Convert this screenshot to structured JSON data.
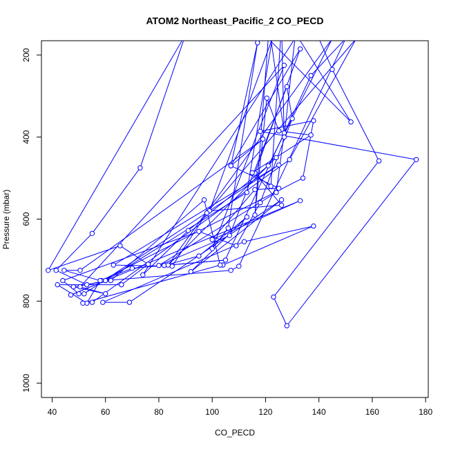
{
  "chart_data": {
    "type": "line",
    "title": "ATOM2 Northeast_Pacific_2 CO_PECD",
    "xlabel": "CO_PECD",
    "ylabel": "Pressure (mbar)",
    "xlim": [
      36,
      181
    ],
    "ylim": [
      1035,
      165
    ],
    "y_reversed": true,
    "xticks": [
      40,
      60,
      80,
      100,
      120,
      140,
      160,
      180
    ],
    "yticks": [
      200,
      400,
      600,
      800,
      1000
    ],
    "grid": false,
    "legend": "none",
    "colors": {
      "series": "#0000ff",
      "axis": "#000000"
    },
    "series": [
      {
        "points": [
          [
            140,
            160
          ],
          [
            145,
            235
          ],
          [
            162.5,
            458
          ],
          [
            123,
            790
          ],
          [
            128,
            860
          ],
          [
            176.5,
            455
          ],
          [
            118,
            386
          ],
          [
            138,
            360
          ],
          [
            134,
            500
          ],
          [
            58.5,
            750
          ],
          [
            70,
            720
          ],
          [
            105,
            700
          ],
          [
            82,
            713
          ],
          [
            95,
            690
          ],
          [
            113,
            595
          ],
          [
            92,
            728
          ],
          [
            126,
            553
          ],
          [
            69,
            803
          ],
          [
            59,
            803
          ],
          [
            112,
            655
          ],
          [
            138,
            617
          ],
          [
            104,
            712
          ],
          [
            137,
            250
          ],
          [
            150,
            160
          ],
          [
            110,
            715
          ],
          [
            107,
            725
          ],
          [
            60,
            750
          ],
          [
            53,
            760
          ],
          [
            41.5,
            725
          ],
          [
            55,
            635
          ],
          [
            73,
            475
          ],
          [
            90,
            150
          ],
          [
            38.5,
            725
          ],
          [
            65.5,
            665
          ],
          [
            76,
            710
          ],
          [
            66,
            760
          ],
          [
            42,
            760
          ],
          [
            53,
            805
          ],
          [
            58,
            750
          ],
          [
            44.5,
            725
          ],
          [
            50.5,
            725
          ],
          [
            119,
            405
          ],
          [
            107,
            470
          ],
          [
            125,
            525
          ],
          [
            116,
            528
          ],
          [
            100,
            650
          ],
          [
            133,
            555
          ],
          [
            47,
            785
          ],
          [
            60,
            750
          ],
          [
            113,
            535
          ],
          [
            122.5,
            160
          ],
          [
            99,
            580
          ],
          [
            126,
            566
          ],
          [
            116,
            488
          ],
          [
            133,
            185
          ],
          [
            107,
            470
          ],
          [
            117,
            170
          ],
          [
            106,
            622
          ],
          [
            100,
            672
          ],
          [
            127,
            225
          ],
          [
            50.5,
            765
          ],
          [
            60,
            782
          ],
          [
            48,
            765
          ],
          [
            62,
            750
          ],
          [
            97,
            553
          ],
          [
            103,
            712
          ],
          [
            51.5,
            805
          ],
          [
            55,
            803
          ],
          [
            129,
            455
          ],
          [
            154,
            160
          ],
          [
            98,
            585
          ],
          [
            85,
            715
          ],
          [
            63,
            712
          ],
          [
            125,
            468
          ],
          [
            52,
            782
          ],
          [
            50,
            782
          ],
          [
            44,
            750
          ],
          [
            95,
            630
          ],
          [
            109,
            665
          ],
          [
            118,
            560
          ],
          [
            130,
            355
          ],
          [
            128,
            277
          ],
          [
            106.5,
            640
          ],
          [
            80,
            713
          ],
          [
            124,
            535
          ],
          [
            127,
            390
          ],
          [
            122,
            160
          ],
          [
            132.5,
            160
          ],
          [
            152,
            363
          ],
          [
            121,
            160
          ],
          [
            116,
            590
          ],
          [
            120.5,
            305
          ],
          [
            125,
            385
          ],
          [
            137,
            395
          ],
          [
            115,
            487
          ],
          [
            122,
            520
          ],
          [
            126,
            125
          ],
          [
            127,
            400
          ],
          [
            131,
            160
          ],
          [
            74,
            736
          ],
          [
            91,
            628
          ],
          [
            121,
            470
          ],
          [
            145,
            160
          ],
          [
            83.5,
            712
          ],
          [
            124,
            450
          ]
        ]
      }
    ]
  }
}
